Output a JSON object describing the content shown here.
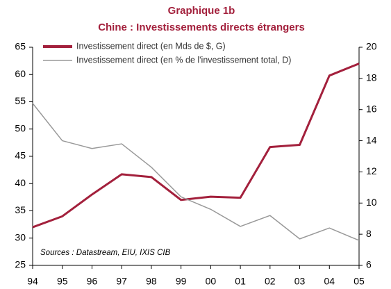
{
  "chart_data": {
    "type": "line",
    "title": "Graphique 1b",
    "subtitle": "Chine : Investissements directs étrangers",
    "annotation": "Sources : Datastream, EIU, IXIS CIB",
    "categories": [
      "94",
      "95",
      "96",
      "97",
      "98",
      "99",
      "00",
      "01",
      "02",
      "03",
      "04",
      "05"
    ],
    "series": [
      {
        "name": "Investissement direct (en Mds de $, G)",
        "color": "#a3203c",
        "axis": "y",
        "values": [
          32,
          34,
          38,
          41.7,
          41.2,
          37,
          37.6,
          37.4,
          46.7,
          47.1,
          59.8,
          62
        ]
      },
      {
        "name": "Investissement direct (en % de l'investissement total, D)",
        "color": "#999999",
        "axis": "y2",
        "values": [
          16.4,
          14.0,
          13.5,
          13.8,
          12.3,
          10.4,
          9.6,
          8.5,
          9.2,
          7.7,
          8.4,
          7.6
        ]
      }
    ],
    "ylim": [
      25,
      65
    ],
    "yticks": [
      25,
      30,
      35,
      40,
      45,
      50,
      55,
      60,
      65
    ],
    "y2lim": [
      6,
      20
    ],
    "y2ticks": [
      6,
      8,
      10,
      12,
      14,
      16,
      18,
      20
    ],
    "grid": false
  }
}
